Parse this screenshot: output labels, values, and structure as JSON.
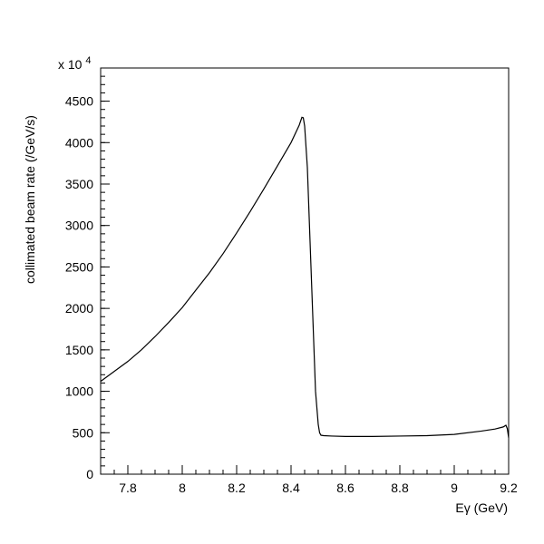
{
  "chart_data": {
    "type": "line",
    "title": "",
    "xlabel": "Eγ (GeV)",
    "ylabel": "collimated beam rate (/GeV/s)",
    "scale_factor_label": "x 10",
    "scale_factor_exponent": "4",
    "xlim": [
      7.7,
      9.2
    ],
    "ylim": [
      0,
      4900
    ],
    "xticks": [
      7.8,
      8.0,
      8.2,
      8.4,
      8.6,
      8.8,
      9.0,
      9.2
    ],
    "xtick_labels": [
      "7.8",
      "8",
      "8.2",
      "8.4",
      "8.6",
      "8.8",
      "9",
      "9.2"
    ],
    "yticks": [
      0,
      500,
      1000,
      1500,
      2000,
      2500,
      3000,
      3500,
      4000,
      4500
    ],
    "ytick_labels": [
      "0",
      "500",
      "1000",
      "1500",
      "2000",
      "2500",
      "3000",
      "3500",
      "4000",
      "4500"
    ],
    "grid": false,
    "series": [
      {
        "x": [
          7.7,
          7.75,
          7.8,
          7.85,
          7.9,
          7.95,
          8.0,
          8.05,
          8.1,
          8.15,
          8.2,
          8.25,
          8.3,
          8.35,
          8.4,
          8.43,
          8.44,
          8.445,
          8.45,
          8.46,
          8.47,
          8.48,
          8.49,
          8.5,
          8.505,
          8.51,
          8.52,
          8.55,
          8.6,
          8.7,
          8.8,
          8.9,
          9.0,
          9.1,
          9.15,
          9.18,
          9.19,
          9.195,
          9.2
        ],
        "y": [
          1120,
          1240,
          1360,
          1500,
          1660,
          1830,
          2010,
          2220,
          2430,
          2660,
          2910,
          3170,
          3440,
          3720,
          4000,
          4210,
          4305,
          4300,
          4200,
          3700,
          2800,
          1900,
          1000,
          600,
          500,
          470,
          465,
          460,
          455,
          455,
          460,
          465,
          480,
          520,
          545,
          570,
          590,
          550,
          440
        ]
      }
    ]
  }
}
